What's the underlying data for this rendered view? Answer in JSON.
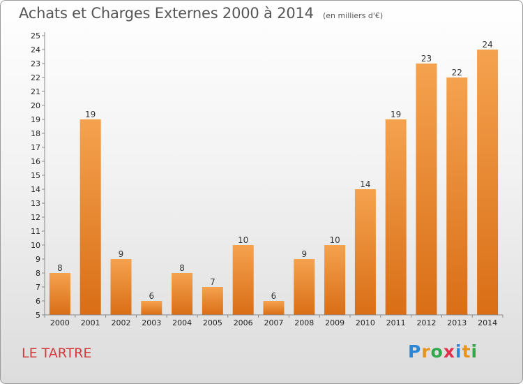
{
  "title": "Achats et Charges Externes 2000 à 2014",
  "subtitle": "(en milliers d'€)",
  "place": "LE TARTRE",
  "logo": {
    "text": "Proxiti",
    "letters": [
      {
        "ch": "P",
        "color": "#2e86d6"
      },
      {
        "ch": "r",
        "color": "#e8931e"
      },
      {
        "ch": "o",
        "color": "#2ea84a"
      },
      {
        "ch": "x",
        "color": "#e1304c"
      },
      {
        "ch": "i",
        "color": "#2e86d6"
      },
      {
        "ch": "t",
        "color": "#e8931e"
      },
      {
        "ch": "i",
        "color": "#2ea84a"
      }
    ]
  },
  "chart_data": {
    "type": "bar",
    "title": "Achats et Charges Externes 2000 à 2014",
    "subtitle": "(en milliers d'€)",
    "categories": [
      "2000",
      "2001",
      "2002",
      "2003",
      "2004",
      "2005",
      "2006",
      "2007",
      "2008",
      "2009",
      "2010",
      "2011",
      "2012",
      "2013",
      "2014"
    ],
    "values": [
      8,
      19,
      9,
      6,
      8,
      7,
      10,
      6,
      9,
      10,
      14,
      19,
      23,
      22,
      24
    ],
    "ylim": [
      5,
      25
    ],
    "yticks": [
      5,
      6,
      7,
      8,
      9,
      10,
      11,
      12,
      13,
      14,
      15,
      16,
      17,
      18,
      19,
      20,
      21,
      22,
      23,
      24,
      25
    ],
    "grid": false,
    "data_labels": true,
    "colors": {
      "bar_top": "#f5a24f",
      "bar_bottom": "#d96e16",
      "axis": "#888888"
    }
  }
}
